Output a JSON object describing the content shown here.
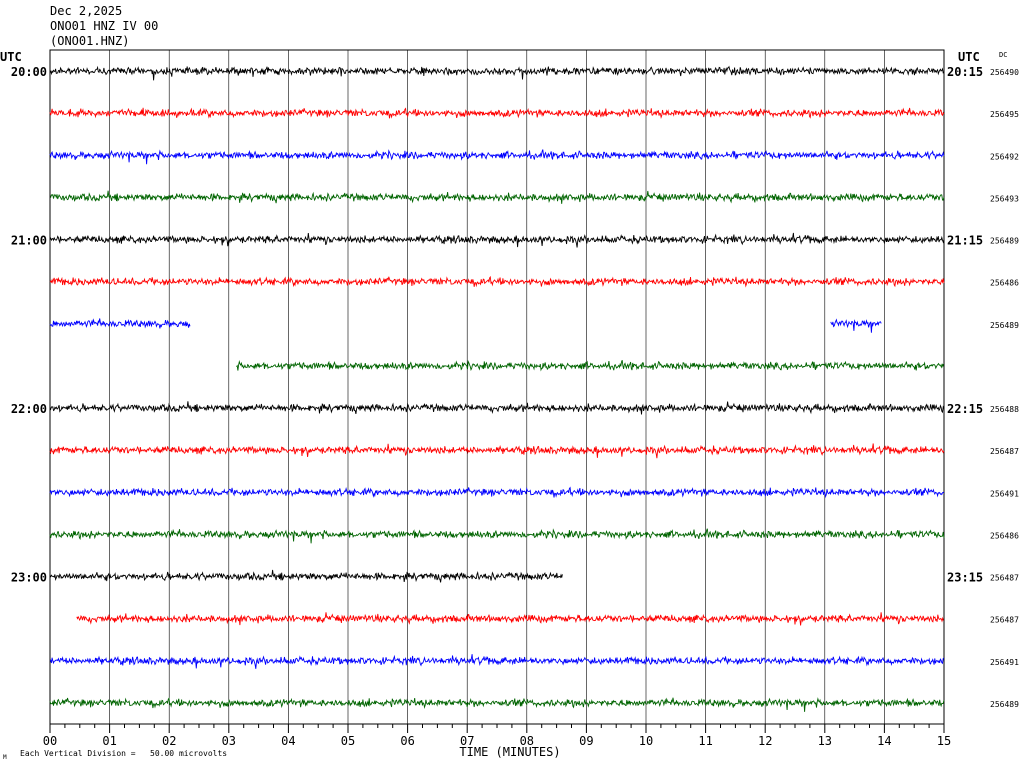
{
  "header": {
    "date": "Dec 2,2025",
    "station": "ONO01 HNZ IV 00",
    "channel": "(ONO01.HNZ)"
  },
  "utc_label": "UTC",
  "dc_label": "DC",
  "footer": {
    "scale_text": "Each Vertical Division =   50.00 microvolts",
    "corner_mark": "M"
  },
  "colors": [
    "#000000",
    "#ff0000",
    "#0000ff",
    "#006400"
  ],
  "chart_data": {
    "type": "line",
    "title": "",
    "xlabel": "TIME (MINUTES)",
    "ylabel": "",
    "xlim": [
      0,
      15
    ],
    "x_ticks": [
      "00",
      "01",
      "02",
      "03",
      "04",
      "05",
      "06",
      "07",
      "08",
      "09",
      "10",
      "11",
      "12",
      "13",
      "14",
      "15"
    ],
    "grid": true,
    "traces": [
      {
        "row": 0,
        "left_label": "20:00",
        "right_label": "20:15",
        "dc": "256490",
        "segments": [
          [
            0,
            15
          ]
        ]
      },
      {
        "row": 1,
        "left_label": "",
        "right_label": "",
        "dc": "256495",
        "segments": [
          [
            0,
            15
          ]
        ]
      },
      {
        "row": 2,
        "left_label": "",
        "right_label": "",
        "dc": "256492",
        "segments": [
          [
            0,
            15
          ]
        ]
      },
      {
        "row": 3,
        "left_label": "",
        "right_label": "",
        "dc": "256493",
        "segments": [
          [
            0,
            15
          ]
        ]
      },
      {
        "row": 4,
        "left_label": "21:00",
        "right_label": "21:15",
        "dc": "256489",
        "segments": [
          [
            0,
            15
          ]
        ]
      },
      {
        "row": 5,
        "left_label": "",
        "right_label": "",
        "dc": "256486",
        "segments": [
          [
            0,
            15
          ]
        ]
      },
      {
        "row": 6,
        "left_label": "",
        "right_label": "",
        "dc": "256489",
        "segments": [
          [
            0,
            2.35
          ],
          [
            13.1,
            13.95
          ]
        ]
      },
      {
        "row": 7,
        "left_label": "",
        "right_label": "",
        "dc": "",
        "segments": [
          [
            3.13,
            15
          ]
        ]
      },
      {
        "row": 8,
        "left_label": "22:00",
        "right_label": "22:15",
        "dc": "256488",
        "segments": [
          [
            0,
            15
          ]
        ]
      },
      {
        "row": 9,
        "left_label": "",
        "right_label": "",
        "dc": "256487",
        "segments": [
          [
            0,
            15
          ]
        ]
      },
      {
        "row": 10,
        "left_label": "",
        "right_label": "",
        "dc": "256491",
        "segments": [
          [
            0,
            15
          ]
        ]
      },
      {
        "row": 11,
        "left_label": "",
        "right_label": "",
        "dc": "256486",
        "segments": [
          [
            0,
            15
          ]
        ]
      },
      {
        "row": 12,
        "left_label": "23:00",
        "right_label": "23:15",
        "dc": "256487",
        "segments": [
          [
            0,
            8.6
          ]
        ]
      },
      {
        "row": 13,
        "left_label": "",
        "right_label": "",
        "dc": "256487",
        "segments": [
          [
            0.45,
            15
          ]
        ]
      },
      {
        "row": 14,
        "left_label": "",
        "right_label": "",
        "dc": "256491",
        "segments": [
          [
            0,
            15
          ]
        ]
      },
      {
        "row": 15,
        "left_label": "",
        "right_label": "",
        "dc": "256489",
        "segments": [
          [
            0,
            15
          ]
        ]
      }
    ]
  }
}
